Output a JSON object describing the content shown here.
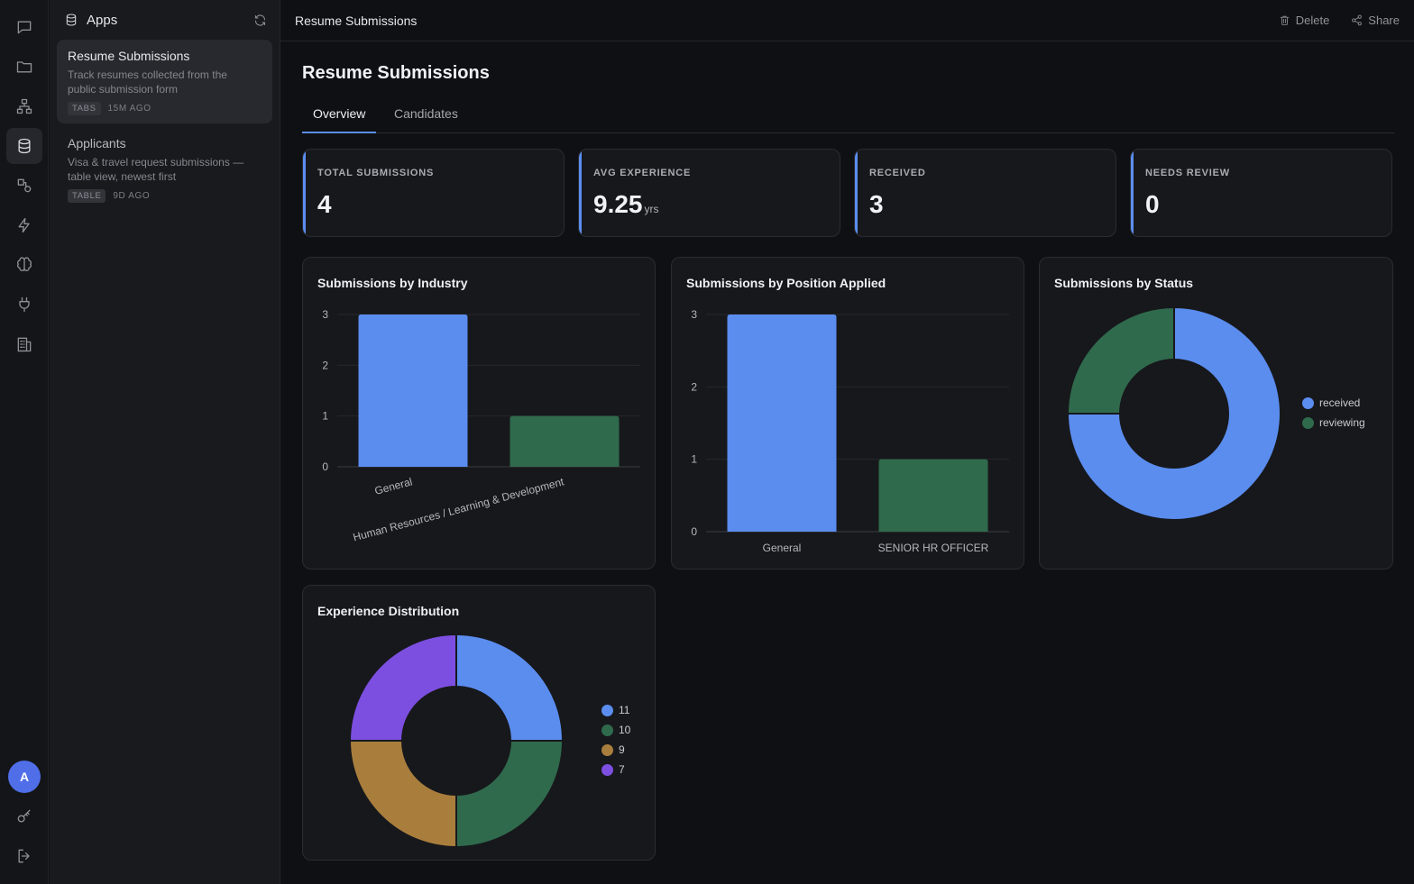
{
  "sidebar": {
    "title": "Apps",
    "apps": [
      {
        "name": "Resume Submissions",
        "desc_line1": "Track resumes collected from the",
        "desc_line2": "public submission form",
        "tag": "TABS",
        "ago": "15M AGO"
      },
      {
        "name": "Applicants",
        "desc_line1": "Visa & travel request submissions —",
        "desc_line2": "table view, newest first",
        "tag": "TABLE",
        "ago": "9D AGO"
      }
    ],
    "user_initial": "A"
  },
  "header": {
    "title": "Resume Submissions",
    "delete_label": "Delete",
    "share_label": "Share"
  },
  "page": {
    "title": "Resume Submissions",
    "tabs": [
      "Overview",
      "Candidates"
    ]
  },
  "stats": [
    {
      "label": "TOTAL SUBMISSIONS",
      "value": "4",
      "unit": ""
    },
    {
      "label": "AVG EXPERIENCE",
      "value": "9.25",
      "unit": "yrs"
    },
    {
      "label": "RECEIVED",
      "value": "3",
      "unit": ""
    },
    {
      "label": "NEEDS REVIEW",
      "value": "0",
      "unit": ""
    }
  ],
  "colors": {
    "blue": "#5b8def",
    "green": "#2f6a4c",
    "gold": "#a97e3d",
    "purple": "#7d4fe0"
  },
  "chart_data": [
    {
      "type": "bar",
      "title": "Submissions by Industry",
      "categories": [
        "General",
        "Human Resources / Learning & Development"
      ],
      "values": [
        3,
        1
      ],
      "yticks": [
        "0",
        "1",
        "2",
        "3"
      ],
      "ylim": [
        0,
        3
      ],
      "colors": [
        "#5b8def",
        "#2f6a4c"
      ]
    },
    {
      "type": "bar",
      "title": "Submissions by Position Applied",
      "categories": [
        "General",
        "SENIOR HR OFFICER"
      ],
      "values": [
        3,
        1
      ],
      "yticks": [
        "0",
        "1",
        "2",
        "3"
      ],
      "ylim": [
        0,
        3
      ],
      "colors": [
        "#5b8def",
        "#2f6a4c"
      ]
    },
    {
      "type": "pie",
      "title": "Submissions by Status",
      "labels": [
        "received",
        "reviewing"
      ],
      "values": [
        3,
        1
      ],
      "colors": [
        "#5b8def",
        "#2f6a4c"
      ],
      "legend": "right"
    },
    {
      "type": "pie",
      "title": "Experience Distribution",
      "labels": [
        "11",
        "10",
        "9",
        "7"
      ],
      "values": [
        1,
        1,
        1,
        1
      ],
      "colors": [
        "#5b8def",
        "#2f6a4c",
        "#a97e3d",
        "#7d4fe0"
      ],
      "legend": "right"
    }
  ]
}
